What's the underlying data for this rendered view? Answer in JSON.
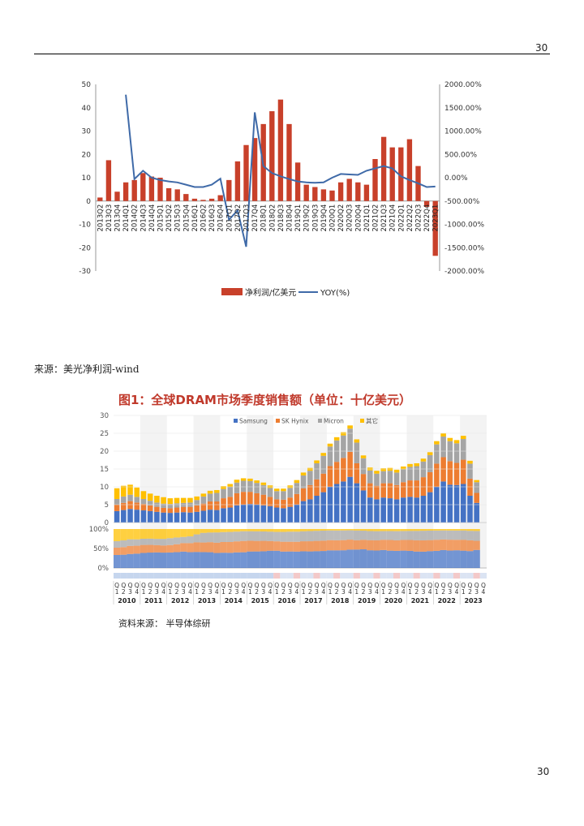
{
  "page": {
    "number_top": "30",
    "number_bottom": "30"
  },
  "source1": "来源：美光净利润-wind",
  "fig_title": "图1：全球DRAM市场季度销售额（单位：十亿美元）",
  "source2": "资料来源： 半导体综研",
  "colors": {
    "bar": "#c8402a",
    "line": "#3f6aa8",
    "samsung": "#4472c4",
    "hynix": "#ed7d31",
    "micron": "#a5a5a5",
    "other": "#ffc000"
  },
  "chart_data": [
    {
      "type": "bar",
      "title": "",
      "left_axis": {
        "ylim": [
          -30,
          50
        ],
        "ticks": [
          "50",
          "40",
          "30",
          "20",
          "10",
          "0",
          "-10",
          "-20",
          "-30"
        ]
      },
      "right_axis": {
        "ylim": [
          -2000,
          2000
        ],
        "ticks": [
          "2000.00%",
          "1500.00%",
          "1000.00%",
          "500.00%",
          "0.00%",
          "-500.00%",
          "-1000.00%",
          "-1500.00%",
          "-2000.00%"
        ]
      },
      "categories": [
        "2013Q2",
        "2013Q3",
        "2013Q4",
        "2014Q1",
        "2014Q2",
        "2014Q3",
        "2014Q4",
        "2015Q1",
        "2015Q2",
        "2015Q3",
        "2015Q4",
        "2016Q1",
        "2016Q2",
        "2016Q3",
        "2016Q4",
        "2017Q1",
        "2017Q2",
        "2017Q3",
        "2017Q4",
        "2018Q1",
        "2018Q2",
        "2018Q3",
        "2018Q4",
        "2019Q1",
        "2019Q2",
        "2019Q3",
        "2019Q4",
        "2020Q1",
        "2020Q2",
        "2020Q3",
        "2020Q4",
        "2021Q1",
        "2021Q2",
        "2021Q3",
        "2021Q4",
        "2022Q1",
        "2022Q2",
        "2022Q3",
        "2022Q4",
        "2023Q1"
      ],
      "series": [
        {
          "name": "净利润/亿美元",
          "kind": "bar",
          "axis": "left",
          "values": [
            1.5,
            17.5,
            4,
            8,
            9,
            12,
            10.5,
            10,
            5.5,
            5,
            3,
            1,
            0.5,
            1,
            2.5,
            9,
            17,
            24,
            27,
            33,
            38.5,
            43.5,
            33,
            16.5,
            7,
            6,
            5,
            4.5,
            8,
            9.5,
            8,
            7,
            18,
            27.5,
            23,
            23,
            26.5,
            15,
            -2.5,
            -23.5
          ]
        },
        {
          "name": "YOY(%)",
          "kind": "line",
          "axis": "right",
          "values": [
            null,
            null,
            null,
            1780,
            -30,
            150,
            0,
            -50,
            -80,
            -100,
            -150,
            -200,
            -200,
            -150,
            -20,
            -900,
            -700,
            -1480,
            1400,
            250,
            100,
            30,
            -30,
            -80,
            -100,
            -110,
            -100,
            0,
            80,
            70,
            60,
            150,
            200,
            250,
            200,
            30,
            -50,
            -120,
            -200,
            -190
          ]
        }
      ],
      "legend": [
        "净利润/亿美元",
        "YOY(%)"
      ]
    },
    {
      "type": "bar",
      "title": "图1：全球DRAM市场季度销售额（单位：十亿美元）",
      "ylim": [
        0,
        30
      ],
      "yticks": [
        "30",
        "25",
        "20",
        "15",
        "10",
        "5",
        "0"
      ],
      "pct_ticks": [
        "100%",
        "50%",
        "0%"
      ],
      "quarter_labels": [
        "1",
        "2",
        "3",
        "4"
      ],
      "quarter_prefix": "Q",
      "years": [
        "2010",
        "2011",
        "2012",
        "2013",
        "2014",
        "2015",
        "2016",
        "2017",
        "2018",
        "2019",
        "2020",
        "2021",
        "2022",
        "2023"
      ],
      "series": [
        {
          "name": "Samsung",
          "values": [
            3.2,
            3.5,
            3.8,
            3.6,
            3.4,
            3.2,
            3.0,
            2.8,
            2.7,
            2.8,
            2.9,
            2.8,
            3.0,
            3.3,
            3.6,
            3.5,
            4.0,
            4.2,
            4.8,
            5.0,
            5.2,
            5.0,
            4.8,
            4.6,
            4.2,
            4.0,
            4.4,
            5.0,
            6.0,
            6.5,
            7.5,
            8.5,
            10.0,
            10.8,
            11.5,
            12.8,
            11.0,
            9.0,
            7.0,
            6.5,
            7.0,
            6.8,
            6.5,
            7.0,
            7.2,
            7.0,
            7.5,
            8.5,
            10.0,
            11.5,
            10.6,
            10.5,
            10.8,
            7.5,
            5.5,
            null
          ]
        },
        {
          "name": "SK Hynix",
          "values": [
            1.8,
            2.0,
            2.2,
            2.0,
            1.8,
            1.6,
            1.4,
            1.3,
            1.3,
            1.4,
            1.5,
            1.6,
            1.8,
            2.0,
            2.3,
            2.4,
            2.8,
            3.0,
            3.4,
            3.6,
            3.4,
            3.2,
            3.0,
            2.6,
            2.3,
            2.4,
            2.6,
            3.0,
            3.6,
            4.0,
            4.6,
            5.2,
            5.8,
            6.2,
            6.6,
            7.0,
            5.6,
            4.6,
            4.0,
            3.8,
            4.0,
            4.2,
            4.0,
            4.3,
            4.6,
            4.8,
            5.2,
            5.6,
            6.5,
            6.8,
            6.6,
            6.2,
            6.8,
            4.8,
            2.8,
            null
          ]
        },
        {
          "name": "Micron",
          "values": [
            1.6,
            1.8,
            1.8,
            1.6,
            1.4,
            1.3,
            1.2,
            1.2,
            1.2,
            1.2,
            1.1,
            1.2,
            1.5,
            2.0,
            2.2,
            2.4,
            2.6,
            2.8,
            3.0,
            3.1,
            3.0,
            2.9,
            2.7,
            2.5,
            2.3,
            2.4,
            2.7,
            3.1,
            3.6,
            4.0,
            4.5,
            5.0,
            5.5,
            6.0,
            6.3,
            6.5,
            5.8,
            4.4,
            3.6,
            3.4,
            3.4,
            3.5,
            3.5,
            3.6,
            3.8,
            4.0,
            4.4,
            4.8,
            5.4,
            5.8,
            5.6,
            5.5,
            5.8,
            4.2,
            3.0,
            null
          ]
        },
        {
          "name": "其它",
          "values": [
            3.0,
            3.0,
            2.8,
            2.6,
            2.2,
            2.0,
            1.9,
            1.8,
            1.6,
            1.5,
            1.4,
            1.3,
            1.0,
            0.8,
            0.8,
            0.8,
            0.8,
            0.8,
            0.8,
            0.7,
            0.7,
            0.7,
            0.7,
            0.7,
            0.7,
            0.7,
            0.7,
            0.8,
            0.8,
            0.8,
            0.8,
            0.8,
            0.8,
            0.9,
            0.9,
            0.9,
            0.9,
            0.8,
            0.8,
            0.8,
            0.8,
            0.8,
            0.8,
            0.8,
            0.8,
            0.8,
            0.8,
            0.8,
            0.9,
            0.9,
            0.9,
            0.9,
            0.9,
            0.8,
            0.6,
            null
          ]
        }
      ],
      "legend": [
        "Samsung",
        "SK Hynix",
        "Micron",
        "其它"
      ]
    }
  ]
}
